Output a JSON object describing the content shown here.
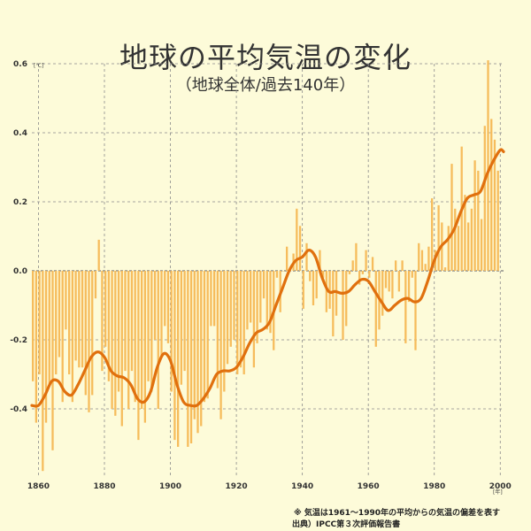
{
  "title": "地球の平均気温の変化",
  "subtitle": "（地球全体/過去140年）",
  "y_unit": "[℃]",
  "x_unit": "[年]",
  "note_line1": "※ 気温は1961～1990年の平均からの気温の偏差を表す",
  "note_line2": "出典）IPCC第３次評価報告書",
  "colors": {
    "background": "#fdfbd9",
    "bars": "#f6bc5c",
    "smoothed_line": "#e0700e",
    "grid": "#8a8a8a",
    "zero_line": "#7a7a7a"
  },
  "chart_data": {
    "type": "bar",
    "title": "地球の平均気温の変化",
    "subtitle": "（地球全体/過去140年）",
    "xlabel": "",
    "ylabel": "",
    "x_unit": "[年]",
    "y_unit": "[℃]",
    "xlim": [
      1858,
      2001
    ],
    "ylim": [
      -0.6,
      0.6
    ],
    "x_ticks": [
      1860,
      1880,
      1900,
      1920,
      1940,
      1960,
      1980,
      2000
    ],
    "y_ticks": [
      0.6,
      0.4,
      0.2,
      0.0,
      -0.2,
      -0.4
    ],
    "y_tick_labels": [
      "0.6",
      "0.4",
      "0.2",
      "0.0",
      "-0.2",
      "-0.4"
    ],
    "grid": true,
    "annual_values": [
      -0.32,
      -0.44,
      -0.3,
      -0.58,
      -0.44,
      -0.33,
      -0.52,
      -0.3,
      -0.25,
      -0.38,
      -0.17,
      -0.3,
      -0.38,
      -0.26,
      -0.28,
      -0.28,
      -0.36,
      -0.41,
      -0.36,
      -0.08,
      0.09,
      -0.29,
      -0.22,
      -0.32,
      -0.4,
      -0.42,
      -0.35,
      -0.45,
      -0.29,
      -0.4,
      -0.29,
      -0.38,
      -0.49,
      -0.4,
      -0.44,
      -0.32,
      -0.35,
      -0.2,
      -0.4,
      -0.25,
      -0.16,
      -0.21,
      -0.35,
      -0.49,
      -0.51,
      -0.33,
      -0.29,
      -0.51,
      -0.5,
      -0.43,
      -0.47,
      -0.45,
      -0.38,
      -0.37,
      -0.16,
      -0.16,
      -0.34,
      -0.43,
      -0.35,
      -0.27,
      -0.22,
      -0.2,
      -0.3,
      -0.28,
      -0.3,
      -0.17,
      -0.15,
      -0.28,
      -0.21,
      -0.15,
      -0.08,
      -0.17,
      -0.18,
      -0.23,
      -0.02,
      -0.12,
      0.0,
      0.07,
      0.01,
      0.05,
      0.18,
      0.13,
      -0.11,
      0.08,
      -0.03,
      -0.1,
      -0.08,
      0.06,
      -0.02,
      -0.12,
      -0.11,
      -0.19,
      -0.13,
      0.0,
      -0.2,
      -0.16,
      -0.01,
      0.03,
      0.08,
      -0.04,
      -0.01,
      0.06,
      -0.02,
      0.04,
      -0.22,
      -0.17,
      -0.13,
      -0.05,
      -0.06,
      -0.08,
      0.03,
      -0.06,
      0.03,
      -0.21,
      -0.09,
      -0.02,
      -0.23,
      0.08,
      0.06,
      0.02,
      0.07,
      0.21,
      0.06,
      0.19,
      0.14,
      0.01,
      0.13,
      0.31,
      0.18,
      0.13,
      0.36,
      0.22,
      0.14,
      0.18,
      0.32,
      0.29,
      0.15,
      0.42,
      0.61,
      0.44,
      0.38,
      0.29
    ],
    "smoothed_points": [
      [
        1858,
        -0.39
      ],
      [
        1860,
        -0.39
      ],
      [
        1862,
        -0.36
      ],
      [
        1864,
        -0.32
      ],
      [
        1866,
        -0.32
      ],
      [
        1868,
        -0.35
      ],
      [
        1870,
        -0.36
      ],
      [
        1872,
        -0.33
      ],
      [
        1874,
        -0.29
      ],
      [
        1876,
        -0.25
      ],
      [
        1878,
        -0.235
      ],
      [
        1880,
        -0.25
      ],
      [
        1882,
        -0.29
      ],
      [
        1884,
        -0.305
      ],
      [
        1886,
        -0.31
      ],
      [
        1888,
        -0.33
      ],
      [
        1890,
        -0.37
      ],
      [
        1892,
        -0.38
      ],
      [
        1894,
        -0.35
      ],
      [
        1896,
        -0.28
      ],
      [
        1898,
        -0.24
      ],
      [
        1900,
        -0.26
      ],
      [
        1902,
        -0.33
      ],
      [
        1904,
        -0.38
      ],
      [
        1906,
        -0.39
      ],
      [
        1908,
        -0.39
      ],
      [
        1910,
        -0.37
      ],
      [
        1912,
        -0.34
      ],
      [
        1914,
        -0.3
      ],
      [
        1916,
        -0.29
      ],
      [
        1918,
        -0.29
      ],
      [
        1920,
        -0.28
      ],
      [
        1922,
        -0.25
      ],
      [
        1924,
        -0.21
      ],
      [
        1926,
        -0.18
      ],
      [
        1928,
        -0.17
      ],
      [
        1930,
        -0.15
      ],
      [
        1932,
        -0.1
      ],
      [
        1934,
        -0.05
      ],
      [
        1936,
        0.0
      ],
      [
        1938,
        0.03
      ],
      [
        1940,
        0.04
      ],
      [
        1942,
        0.06
      ],
      [
        1944,
        0.04
      ],
      [
        1946,
        -0.02
      ],
      [
        1948,
        -0.06
      ],
      [
        1950,
        -0.06
      ],
      [
        1952,
        -0.065
      ],
      [
        1954,
        -0.06
      ],
      [
        1956,
        -0.04
      ],
      [
        1958,
        -0.025
      ],
      [
        1960,
        -0.03
      ],
      [
        1962,
        -0.06
      ],
      [
        1964,
        -0.09
      ],
      [
        1966,
        -0.115
      ],
      [
        1968,
        -0.1
      ],
      [
        1970,
        -0.085
      ],
      [
        1972,
        -0.08
      ],
      [
        1974,
        -0.09
      ],
      [
        1976,
        -0.08
      ],
      [
        1978,
        -0.03
      ],
      [
        1980,
        0.03
      ],
      [
        1982,
        0.07
      ],
      [
        1984,
        0.09
      ],
      [
        1986,
        0.12
      ],
      [
        1988,
        0.17
      ],
      [
        1990,
        0.21
      ],
      [
        1992,
        0.22
      ],
      [
        1994,
        0.23
      ],
      [
        1996,
        0.28
      ],
      [
        1998,
        0.32
      ],
      [
        2000,
        0.35
      ],
      [
        2001,
        0.345
      ]
    ]
  }
}
